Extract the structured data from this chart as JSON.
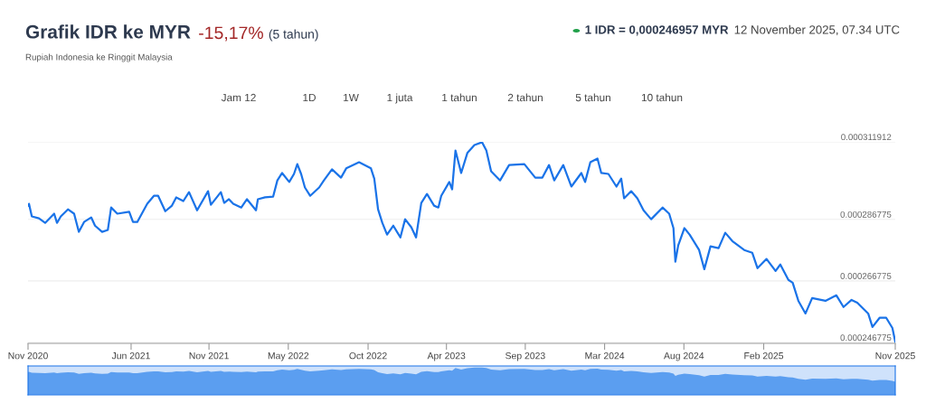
{
  "chart_data": {
    "type": "line",
    "title": "Grafik IDR ke MYR",
    "subtitle": "Rupiah Indonesia ke Ringgit Malaysia",
    "annotations": [
      "-15,17%",
      "(5 tahun)",
      "1 IDR = 0,000246957 MYR",
      "12 November 2025, 07.34 UTC",
      "Jam 12",
      "1D",
      "1W",
      "1 juta",
      "1 tahun",
      "2 tahun",
      "5 tahun",
      "10 tahun"
    ],
    "x": [
      "2020-11-12",
      "2020-11-14",
      "2020-11-20",
      "2020-12-05",
      "2020-12-18",
      "2021-01-06",
      "2021-01-12",
      "2021-01-20",
      "2021-02-04",
      "2021-02-17",
      "2021-02-27",
      "2021-03-10",
      "2021-03-25",
      "2021-04-02",
      "2021-04-17",
      "2021-04-29",
      "2021-05-06",
      "2021-05-19",
      "2021-06-13",
      "2021-06-21",
      "2021-06-30",
      "2021-07-21",
      "2021-08-04",
      "2021-08-13",
      "2021-08-28",
      "2021-09-11",
      "2021-09-20",
      "2021-10-05",
      "2021-10-17",
      "2021-11-03",
      "2021-11-26",
      "2021-12-02",
      "2021-12-23",
      "2021-12-30",
      "2022-01-09",
      "2022-01-18",
      "2022-02-04",
      "2022-02-16",
      "2022-03-07",
      "2022-03-11",
      "2022-03-26",
      "2022-04-12",
      "2022-04-21",
      "2022-05-01",
      "2022-05-16",
      "2022-05-26",
      "2022-06-02",
      "2022-06-10",
      "2022-06-18",
      "2022-06-29",
      "2022-07-18",
      "2022-07-28",
      "2022-08-14",
      "2022-09-02",
      "2022-09-13",
      "2022-10-10",
      "2022-11-04",
      "2022-11-11",
      "2022-11-19",
      "2022-11-28",
      "2022-12-08",
      "2022-12-21",
      "2023-01-05",
      "2023-01-15",
      "2023-01-28",
      "2023-02-07",
      "2023-02-18",
      "2023-03-02",
      "2023-03-17",
      "2023-03-26",
      "2023-04-01",
      "2023-04-18",
      "2023-04-24",
      "2023-05-01",
      "2023-05-13",
      "2023-05-26",
      "2023-06-10",
      "2023-06-26",
      "2023-07-05",
      "2023-07-15",
      "2023-08-03",
      "2023-08-22",
      "2023-09-23",
      "2023-10-16",
      "2023-10-31",
      "2023-11-14",
      "2023-11-25",
      "2023-12-14",
      "2023-12-31",
      "2024-01-21",
      "2024-01-29",
      "2024-02-09",
      "2024-02-24",
      "2024-03-03",
      "2024-03-18",
      "2024-04-04",
      "2024-04-14",
      "2024-04-20",
      "2024-05-05",
      "2024-05-18",
      "2024-05-31",
      "2024-06-16",
      "2024-07-10",
      "2024-07-24",
      "2024-08-02",
      "2024-08-06",
      "2024-08-12",
      "2024-08-25",
      "2024-09-05",
      "2024-09-25",
      "2024-10-06",
      "2024-10-19",
      "2024-11-05",
      "2024-11-19",
      "2024-12-04",
      "2024-12-29",
      "2025-01-15",
      "2025-01-26",
      "2025-02-14",
      "2025-03-05",
      "2025-03-15",
      "2025-04-01",
      "2025-04-10",
      "2025-04-22",
      "2025-05-07",
      "2025-05-21",
      "2025-06-18",
      "2025-07-11",
      "2025-07-26",
      "2025-08-12",
      "2025-08-24",
      "2025-09-16",
      "2025-09-25",
      "2025-10-10",
      "2025-10-24",
      "2025-11-06",
      "2025-11-12"
    ],
    "series": [
      {
        "color": "#1a73e8",
        "values": [
          0.0002912,
          0.0002918,
          0.0002877,
          0.0002871,
          0.0002856,
          0.0002886,
          0.0002856,
          0.0002877,
          0.00029,
          0.0002886,
          0.0002827,
          0.0002859,
          0.0002874,
          0.0002847,
          0.0002827,
          0.0002833,
          0.0002906,
          0.0002886,
          0.0002892,
          0.0002859,
          0.0002859,
          0.0002918,
          0.0002944,
          0.0002944,
          0.0002894,
          0.0002912,
          0.0002939,
          0.0002927,
          0.0002956,
          0.0002897,
          0.0002959,
          0.0002915,
          0.0002956,
          0.0002921,
          0.0002933,
          0.0002918,
          0.0002906,
          0.0002933,
          0.0002897,
          0.0002933,
          0.0002939,
          0.0002941,
          0.0002994,
          0.0003018,
          0.0002989,
          0.0003015,
          0.0003047,
          0.0003015,
          0.0002971,
          0.0002944,
          0.0002971,
          0.0002994,
          0.000303,
          0.0003003,
          0.0003033,
          0.0003053,
          0.0003033,
          0.0003,
          0.00029,
          0.0002856,
          0.0002818,
          0.0002847,
          0.0002809,
          0.0002868,
          0.0002842,
          0.0002809,
          0.0002921,
          0.000295,
          0.0002912,
          0.0002906,
          0.0002944,
          0.0002989,
          0.0002965,
          0.0003091,
          0.0003018,
          0.0003083,
          0.0003109,
          0.0003118,
          0.0003091,
          0.0003024,
          0.0002994,
          0.0003044,
          0.0003047,
          0.0003003,
          0.0003003,
          0.0003044,
          0.0002994,
          0.0003044,
          0.0002974,
          0.0003018,
          0.0002989,
          0.0003053,
          0.0003065,
          0.0003018,
          0.0003015,
          0.0002974,
          0.0003,
          0.0002936,
          0.0002959,
          0.0002936,
          0.0002897,
          0.0002868,
          0.0002906,
          0.0002886,
          0.0002839,
          0.000273,
          0.0002783,
          0.0002839,
          0.0002818,
          0.0002768,
          0.0002706,
          0.000278,
          0.0002774,
          0.0002824,
          0.0002797,
          0.0002768,
          0.0002759,
          0.0002709,
          0.0002739,
          0.00027,
          0.0002721,
          0.0002671,
          0.0002662,
          0.0002603,
          0.0002562,
          0.0002612,
          0.0002603,
          0.0002621,
          0.0002583,
          0.0002606,
          0.0002597,
          0.0002562,
          0.0002518,
          0.0002548,
          0.0002548,
          0.0002515,
          0.000247
        ]
      }
    ],
    "xlim": [
      "2020-11-12",
      "2025-11-12"
    ],
    "xticks": [
      {
        "value": "2020-11-12",
        "label": "Nov 2020"
      },
      {
        "value": "2021-06-17",
        "label": "Jun 2021"
      },
      {
        "value": "2021-11-28",
        "label": "Nov 2021"
      },
      {
        "value": "2022-05-14",
        "label": "May 2022"
      },
      {
        "value": "2022-10-29",
        "label": "Oct 2022"
      },
      {
        "value": "2023-04-12",
        "label": "Apr 2023"
      },
      {
        "value": "2023-09-25",
        "label": "Sep 2023"
      },
      {
        "value": "2024-03-10",
        "label": "Mar 2024"
      },
      {
        "value": "2024-08-24",
        "label": "Aug 2024"
      },
      {
        "value": "2025-02-08",
        "label": "Feb 2025"
      },
      {
        "value": "2025-11-12",
        "label": "Nov 2025"
      }
    ],
    "ylim": [
      0.0002465,
      0.000311912
    ],
    "yticks": [
      0.000246775,
      0.000266775,
      0.000286775,
      0.000311912
    ],
    "grid": "y",
    "marker": "none",
    "line_style": "solid"
  }
}
